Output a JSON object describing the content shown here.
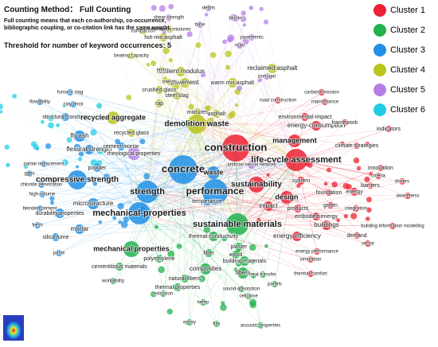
{
  "header": {
    "method": "Counting Method：  Full Counting",
    "description": "Full counting means that each co-authorship, co-occurrence, bibliographic coupling, or co-citation link has the same weight.",
    "threshold": "Threshold for number of keyword occurrences: 5"
  },
  "clusters": [
    {
      "label": "Cluster 1",
      "color": "#ec2232",
      "nodes": [
        "construction",
        "life-cycle assessment",
        "management",
        "sustainability",
        "design",
        "impact",
        "energy",
        "energy-consumption",
        "environmental-impact",
        "framework",
        "climate strategies",
        "indicators",
        "innovation",
        "criteria",
        "barriers",
        "drivers",
        "awareness",
        "foundation",
        "green",
        "integration",
        "products",
        "embodied energy",
        "buildings",
        "energy efficiency",
        "demand",
        "sector",
        "building information modelling",
        "simulation",
        "thermal comfort",
        "energy performance",
        "carbon emission",
        "maintenance",
        "road construction",
        "system"
      ]
    },
    {
      "label": "Cluster 2",
      "color": "#22b24c",
      "nodes": [
        "sustainable materials",
        "mechanical properties",
        "composites",
        "fibers",
        "thermal-conductivity",
        "plaster",
        "wood",
        "building materials",
        "fiber",
        "polyethylene",
        "natural fibers",
        "thermal properties",
        "sound-absorption",
        "cellulose",
        "hemp",
        "epoxy",
        "flax",
        "acoustic properties",
        "cementitious materials",
        "workability",
        "extrusion",
        "heat transfer",
        "panels"
      ]
    },
    {
      "label": "Cluster 3",
      "color": "#1f90e6",
      "nodes": [
        "concrete",
        "performance",
        "strength",
        "compressive strength",
        "mechanical-properties",
        "microstructure",
        "durability properties",
        "fly ash",
        "mortar",
        "flexural strength",
        "cement mortar",
        "powder",
        "fresh",
        "blended cement",
        "high-volume",
        "chloride penetration",
        "ggbs",
        "silica fume",
        "paste",
        "partial replacement",
        "structural concrete",
        "waste",
        "temperature",
        "flowability",
        "clay brick",
        "furnace slag"
      ]
    },
    {
      "label": "Cluster 4",
      "color": "#b9c41c",
      "nodes": [
        "demolition waste",
        "recycled aggregate",
        "pavement",
        "warm mix asphalt",
        "reclaimed asphalt",
        "resilient modulus",
        "hot-mix asphalt",
        "compaction",
        "bituminous mixtures",
        "bearing capacity",
        "steel slag",
        "rap",
        "crushed glass",
        "mixtures",
        "asphalt",
        "tests",
        "blends",
        "recycled glass"
      ]
    },
    {
      "label": "Cluster 5",
      "color": "#b57ee6",
      "nodes": [
        "debris",
        "shear strength",
        "blocks",
        "base",
        "road",
        "pavements",
        "portugal",
        "rheological properties",
        "artificial neural network"
      ]
    },
    {
      "label": "Cluster 6",
      "color": "#22cde4",
      "nodes": []
    }
  ]
}
